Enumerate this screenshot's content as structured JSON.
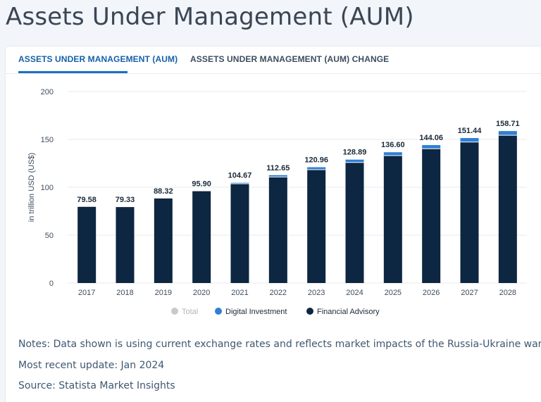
{
  "page": {
    "title": "Assets Under Management (AUM)"
  },
  "tabs": [
    {
      "label": "ASSETS UNDER MANAGEMENT (AUM)",
      "active": true
    },
    {
      "label": "ASSETS UNDER MANAGEMENT (AUM) CHANGE",
      "active": false
    }
  ],
  "colors": {
    "financial_advisory": "#0d2641",
    "digital_investment": "#2f7fd6",
    "total": "#c9c9c9",
    "accent": "#1b70c2"
  },
  "chart_data": {
    "type": "bar",
    "stacked": true,
    "ylabel": "in trillion USD (US$)",
    "ylim": [
      0,
      200
    ],
    "yticks": [
      0,
      50,
      100,
      150,
      200
    ],
    "grid": true,
    "legend_position": "bottom",
    "categories": [
      "2017",
      "2018",
      "2019",
      "2020",
      "2021",
      "2022",
      "2023",
      "2024",
      "2025",
      "2026",
      "2027",
      "2028"
    ],
    "totals": [
      "79.58",
      "79.33",
      "88.32",
      "95.90",
      "104.67",
      "112.65",
      "120.96",
      "128.89",
      "136.60",
      "144.06",
      "151.44",
      "158.71"
    ],
    "series": [
      {
        "name": "Financial Advisory",
        "color": "#0d2641",
        "values": [
          79.58,
          79.33,
          88.32,
          95.9,
          103.67,
          110.75,
          118.36,
          125.89,
          133.1,
          140.26,
          147.24,
          154.31
        ]
      },
      {
        "name": "Digital Investment",
        "color": "#2f7fd6",
        "values": [
          0,
          0,
          0,
          0,
          1.0,
          1.9,
          2.6,
          3.0,
          3.5,
          3.8,
          4.2,
          4.4
        ]
      }
    ],
    "legend": [
      {
        "name": "Total",
        "icon": "dot-gray",
        "color": "#c9c9c9",
        "muted": true
      },
      {
        "name": "Digital Investment",
        "icon": "dot-blue",
        "color": "#2f7fd6",
        "muted": false
      },
      {
        "name": "Financial Advisory",
        "icon": "dot-navy",
        "color": "#0d2641",
        "muted": false
      }
    ]
  },
  "notes": {
    "line1": "Notes: Data shown is using current exchange rates and reflects market impacts of the Russia-Ukraine war.",
    "line2": "Most recent update: Jan 2024",
    "line3": "Source: Statista Market Insights"
  }
}
